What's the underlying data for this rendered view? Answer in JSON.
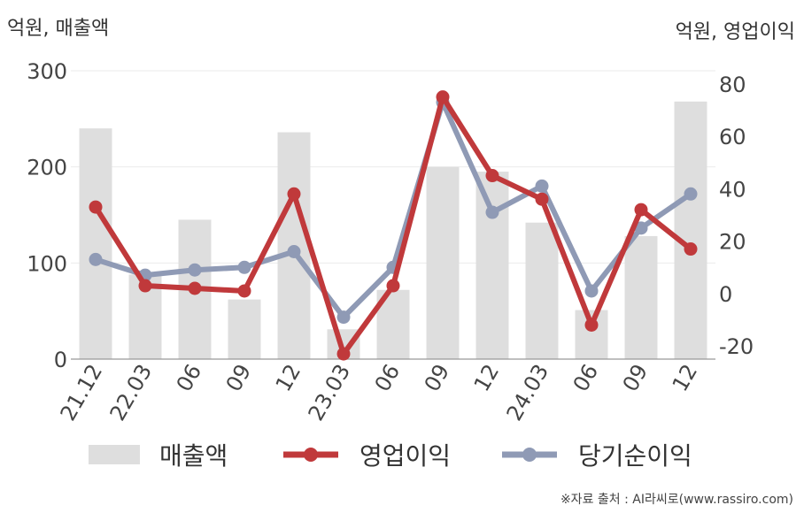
{
  "chart_data": {
    "type": "bar+line",
    "categories": [
      "21.12",
      "22.03",
      "06",
      "09",
      "12",
      "23.03",
      "06",
      "09",
      "12",
      "24.03",
      "06",
      "09",
      "12"
    ],
    "left_axis": {
      "label": "억원, 매출액",
      "ylim": [
        0,
        300
      ],
      "ticks": [
        "0",
        "100",
        "200",
        "300"
      ]
    },
    "right_axis": {
      "label": "억원, 영업이익",
      "ylim": [
        -25,
        85
      ],
      "ticks": [
        "-20",
        "0",
        "20",
        "40",
        "60",
        "80"
      ]
    },
    "series": [
      {
        "name": "매출액",
        "type": "bar",
        "axis": "left",
        "color": "#dedede",
        "values": [
          240,
          88,
          145,
          62,
          236,
          31,
          72,
          200,
          195,
          142,
          51,
          128,
          268
        ]
      },
      {
        "name": "영업이익",
        "type": "line",
        "axis": "right",
        "color": "#c0393b",
        "values": [
          33,
          3,
          2,
          1,
          38,
          -23,
          3,
          75,
          45,
          36,
          -12,
          32,
          17
        ]
      },
      {
        "name": "당기순이익",
        "type": "line",
        "axis": "right",
        "color": "#8f9ab5",
        "values": [
          13,
          7,
          9,
          10,
          16,
          -9,
          10,
          73,
          31,
          41,
          1,
          25,
          38
        ]
      }
    ],
    "grid": true,
    "legend_position": "bottom"
  },
  "source": "※자료 출처 : AI라씨로(www.rassiro.com)"
}
